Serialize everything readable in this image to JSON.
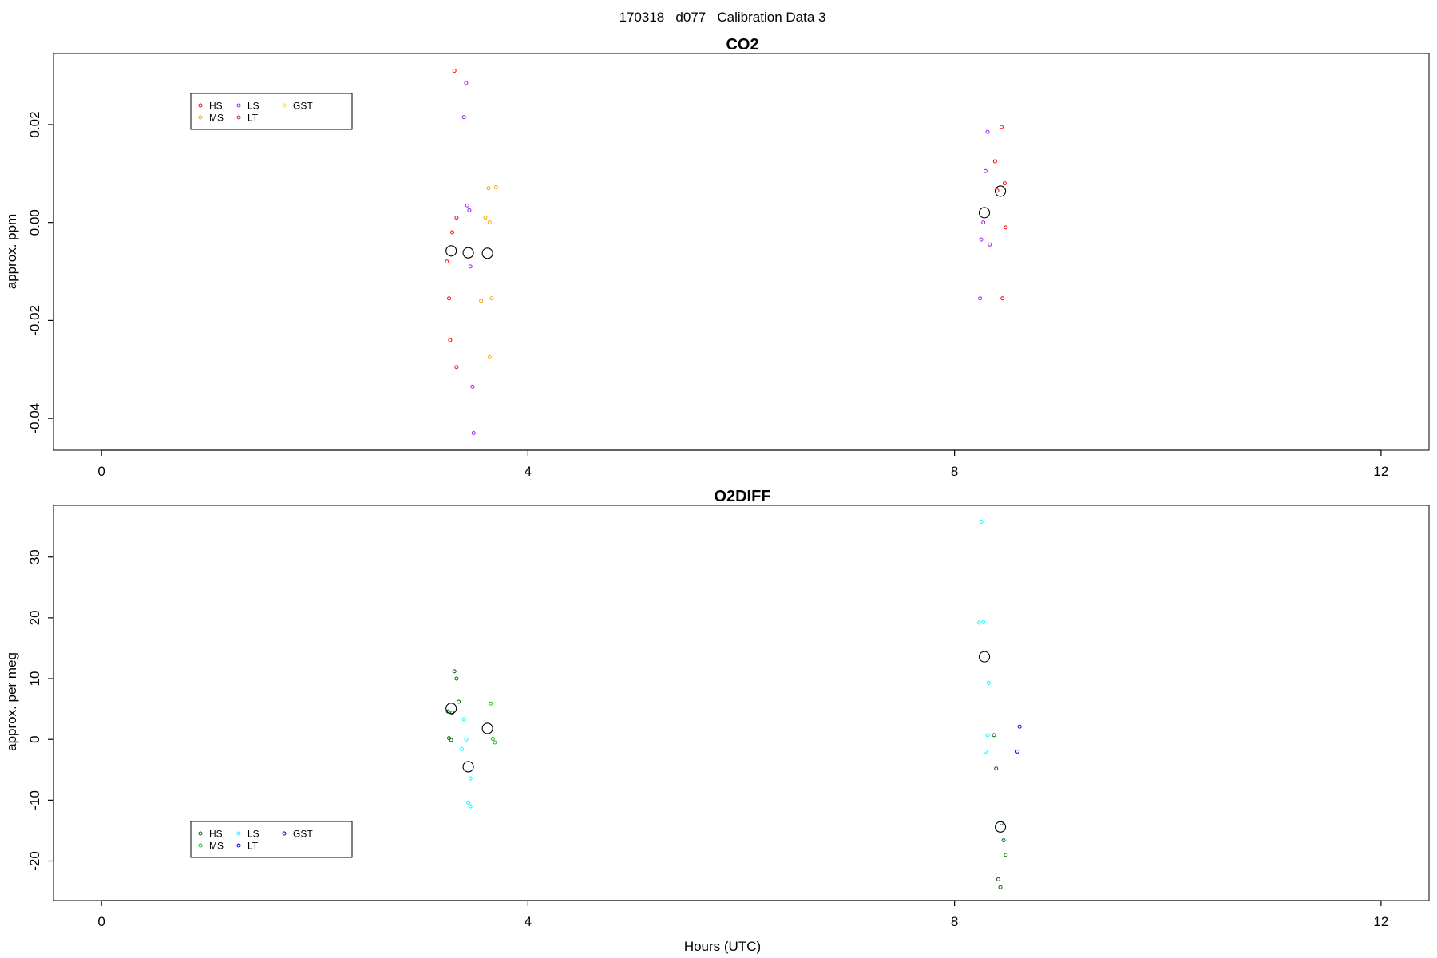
{
  "figure_title": "170318   d077   Calibration Data 3",
  "chart_data": [
    {
      "type": "scatter",
      "title": "CO2",
      "ylabel": "approx. ppm",
      "xlabel": "",
      "xlim": [
        -0.45,
        12.45
      ],
      "ylim": [
        -0.0465,
        0.0345
      ],
      "x_ticks": [
        0,
        4,
        8,
        12
      ],
      "x_tick_labels": [
        "0",
        "4",
        "8",
        "12"
      ],
      "y_ticks": [
        -0.04,
        -0.02,
        0.0,
        0.02
      ],
      "y_tick_labels": [
        "-0.04",
        "-0.02",
        "0.00",
        "0.02"
      ],
      "legend": {
        "placement": "top-left",
        "entries": [
          {
            "label": "HS",
            "color": "#ff0000"
          },
          {
            "label": "MS",
            "color": "#ffa500"
          },
          {
            "label": "LS",
            "color": "#a020f0"
          },
          {
            "label": "LT",
            "color": "#cd2626"
          },
          {
            "label": "GST",
            "color": "#ffd700"
          }
        ]
      },
      "series": [
        {
          "name": "HS",
          "color": "#ff0000",
          "points": [
            [
              3.31,
              0.031
            ],
            [
              3.33,
              0.001
            ],
            [
              3.29,
              -0.002
            ],
            [
              3.24,
              -0.008
            ],
            [
              3.26,
              -0.0155
            ],
            [
              3.27,
              -0.024
            ],
            [
              3.33,
              -0.0295
            ]
          ]
        },
        {
          "name": "MS",
          "color": "#ffa500",
          "points": [
            [
              3.63,
              0.007
            ],
            [
              3.7,
              0.0072
            ],
            [
              3.6,
              0.001
            ],
            [
              3.64,
              0.0
            ],
            [
              3.56,
              -0.016
            ],
            [
              3.66,
              -0.0155
            ],
            [
              3.64,
              -0.0275
            ]
          ]
        },
        {
          "name": "LS",
          "color": "#a020f0",
          "points": [
            [
              3.42,
              0.0285
            ],
            [
              3.4,
              0.0215
            ],
            [
              3.43,
              0.0035
            ],
            [
              3.45,
              0.0025
            ],
            [
              3.46,
              -0.009
            ],
            [
              3.48,
              -0.0335
            ],
            [
              3.49,
              -0.043
            ]
          ]
        },
        {
          "name": "LS",
          "color": "#a020f0",
          "points": [
            [
              8.31,
              0.0185
            ],
            [
              8.29,
              0.0105
            ],
            [
              8.27,
              0.0
            ],
            [
              8.25,
              -0.0035
            ],
            [
              8.33,
              -0.0045
            ],
            [
              8.24,
              -0.0155
            ]
          ]
        },
        {
          "name": "HS",
          "color": "#ff0000",
          "points": [
            [
              8.44,
              0.0195
            ],
            [
              8.38,
              0.0125
            ],
            [
              8.47,
              0.008
            ],
            [
              8.4,
              0.0065
            ],
            [
              8.48,
              -0.001
            ],
            [
              8.45,
              -0.0155
            ]
          ]
        },
        {
          "name": "mean",
          "color": "#000000",
          "large": true,
          "points": [
            [
              3.28,
              -0.0058
            ],
            [
              3.44,
              -0.0062
            ],
            [
              3.62,
              -0.0063
            ],
            [
              8.28,
              0.002
            ],
            [
              8.43,
              0.0064
            ]
          ]
        }
      ]
    },
    {
      "type": "scatter",
      "title": "O2DIFF",
      "ylabel": "approx. per meg",
      "xlabel": "Hours (UTC)",
      "xlim": [
        -0.45,
        12.45
      ],
      "ylim": [
        -26.5,
        38.5
      ],
      "x_ticks": [
        0,
        4,
        8,
        12
      ],
      "x_tick_labels": [
        "0",
        "4",
        "8",
        "12"
      ],
      "y_ticks": [
        -20,
        -10,
        0,
        10,
        20,
        30
      ],
      "y_tick_labels": [
        "-20",
        "-10",
        "0",
        "10",
        "20",
        "30"
      ],
      "legend": {
        "placement": "bottom-left",
        "entries": [
          {
            "label": "HS",
            "color": "#006400"
          },
          {
            "label": "MS",
            "color": "#00cd00"
          },
          {
            "label": "LS",
            "color": "#00ffff"
          },
          {
            "label": "LT",
            "color": "#0000ff"
          },
          {
            "label": "GST",
            "color": "#00008b"
          }
        ]
      },
      "series": [
        {
          "name": "HS",
          "color": "#006400",
          "points": [
            [
              3.31,
              11.2
            ],
            [
              3.33,
              10.0
            ],
            [
              3.35,
              6.2
            ],
            [
              3.25,
              4.6
            ],
            [
              3.29,
              4.4
            ],
            [
              3.26,
              0.2
            ],
            [
              3.28,
              -0.1
            ]
          ]
        },
        {
          "name": "MS",
          "color": "#00cd00",
          "points": [
            [
              3.65,
              5.9
            ],
            [
              3.67,
              0.1
            ],
            [
              3.69,
              -0.5
            ]
          ]
        },
        {
          "name": "LS",
          "color": "#00ffff",
          "points": [
            [
              3.4,
              3.3
            ],
            [
              3.42,
              0.0
            ],
            [
              3.38,
              -1.6
            ],
            [
              3.46,
              -6.4
            ],
            [
              3.44,
              -10.4
            ],
            [
              3.46,
              -11.0
            ]
          ]
        },
        {
          "name": "LS",
          "color": "#00ffff",
          "points": [
            [
              8.25,
              35.8
            ],
            [
              8.23,
              19.2
            ],
            [
              8.27,
              19.3
            ],
            [
              8.32,
              9.3
            ],
            [
              8.31,
              0.7
            ],
            [
              8.29,
              -2.0
            ]
          ]
        },
        {
          "name": "HS",
          "color": "#006400",
          "points": [
            [
              8.37,
              0.7
            ],
            [
              8.39,
              -4.8
            ],
            [
              8.44,
              -13.8
            ],
            [
              8.46,
              -16.6
            ],
            [
              8.48,
              -19.0
            ],
            [
              8.41,
              -23.0
            ],
            [
              8.43,
              -24.3
            ]
          ]
        },
        {
          "name": "LT",
          "color": "#0000ff",
          "points": [
            [
              8.61,
              2.1
            ],
            [
              8.59,
              -2.0
            ]
          ]
        },
        {
          "name": "mean",
          "color": "#000000",
          "large": true,
          "points": [
            [
              3.28,
              5.1
            ],
            [
              3.44,
              -4.5
            ],
            [
              3.62,
              1.8
            ],
            [
              8.28,
              13.6
            ],
            [
              8.43,
              -14.4
            ]
          ]
        }
      ]
    }
  ]
}
